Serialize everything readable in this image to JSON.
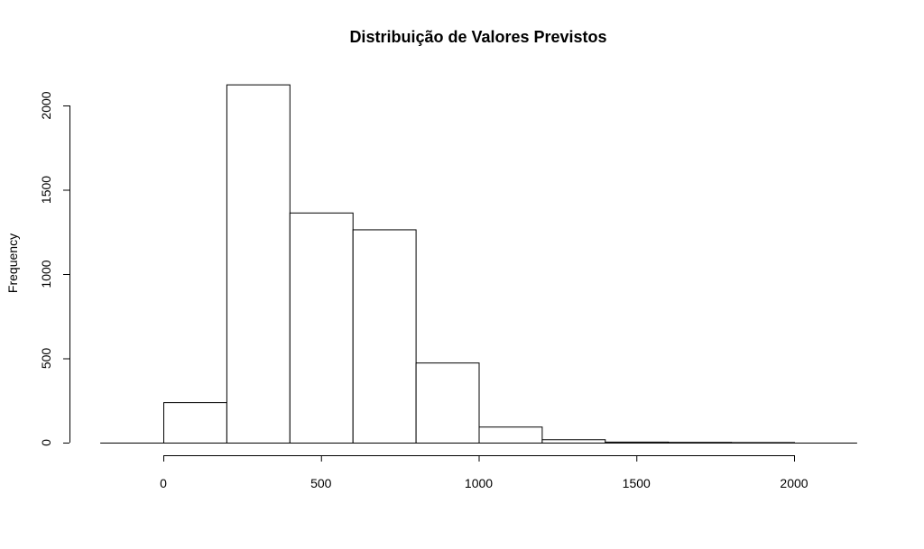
{
  "chart_data": {
    "type": "bar",
    "subtype": "histogram",
    "title": "Distribuição de Valores Previstos",
    "xlabel": "",
    "ylabel": "Frequency",
    "bins": [
      {
        "x0": 0,
        "x1": 200,
        "count": 240
      },
      {
        "x0": 200,
        "x1": 400,
        "count": 2125
      },
      {
        "x0": 400,
        "x1": 600,
        "count": 1365
      },
      {
        "x0": 600,
        "x1": 800,
        "count": 1265
      },
      {
        "x0": 800,
        "x1": 1000,
        "count": 475
      },
      {
        "x0": 1000,
        "x1": 1200,
        "count": 95
      },
      {
        "x0": 1200,
        "x1": 1400,
        "count": 20
      },
      {
        "x0": 1400,
        "x1": 1600,
        "count": 6
      },
      {
        "x0": 1600,
        "x1": 1800,
        "count": 4
      },
      {
        "x0": 1800,
        "x1": 2000,
        "count": 3
      }
    ],
    "xlim": [
      -200,
      2200
    ],
    "ylim": [
      0,
      2125
    ],
    "x_ticks": [
      "0",
      "500",
      "1000",
      "1500",
      "2000"
    ],
    "y_ticks": [
      "0",
      "500",
      "1000",
      "1500",
      "2000"
    ],
    "grid": false,
    "fill_color": "#ffffff",
    "stroke_color": "#000000"
  }
}
